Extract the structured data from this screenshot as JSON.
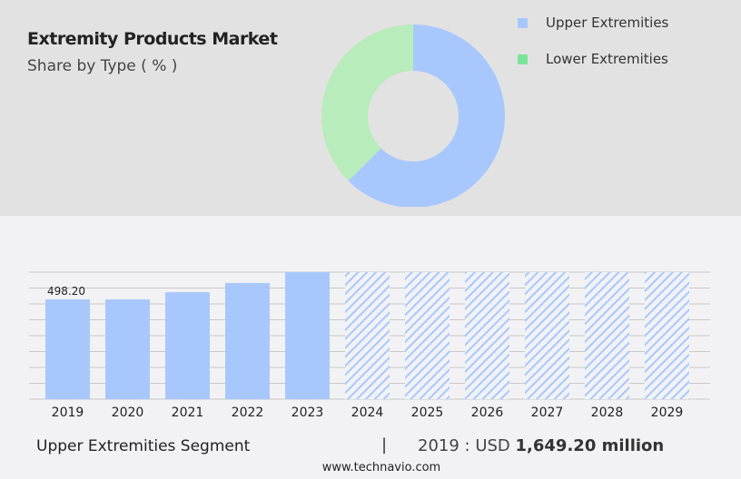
{
  "header": {
    "title": "Extremity Products Market",
    "subtitle": "Share by Type ( % )"
  },
  "chart_data": [
    {
      "type": "pie",
      "donut": true,
      "categories": [
        "Upper Extremities",
        "Lower Extremities"
      ],
      "values": [
        62.5,
        37.5
      ],
      "colors": [
        "#a8c8fd",
        "#b8ecbb"
      ],
      "legend_colors": [
        "#a8c8fd",
        "#7ce49a"
      ],
      "legend": "top-right"
    },
    {
      "type": "bar",
      "categories": [
        "2019",
        "2020",
        "2021",
        "2022",
        "2023",
        "2024",
        "2025",
        "2026",
        "2027",
        "2028",
        "2029"
      ],
      "values": [
        498.2,
        498.2,
        534,
        580,
        634,
        null,
        null,
        null,
        null,
        null,
        null
      ],
      "forecast_categories": [
        "2024",
        "2025",
        "2026",
        "2027",
        "2028",
        "2029"
      ],
      "data_labels": {
        "2019": "498.20"
      },
      "ylim": [
        0,
        634
      ],
      "grid": true,
      "color": "#a8c8fd"
    }
  ],
  "footer": {
    "segment": "Upper Extremities Segment",
    "separator": "|",
    "year_label": "2019 : USD",
    "value": "1,649.20 million",
    "url": "www.technavio.com"
  }
}
